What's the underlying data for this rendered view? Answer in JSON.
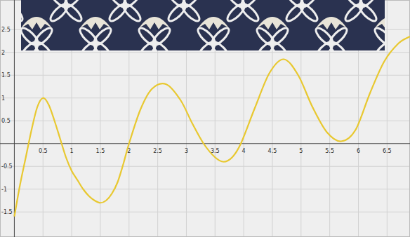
{
  "chart_data": {
    "type": "line",
    "x": [
      0,
      0.1,
      0.2,
      0.3,
      0.4,
      0.5,
      0.6,
      0.7,
      0.8,
      0.9,
      1.0,
      1.1,
      1.2,
      1.3,
      1.4,
      1.5,
      1.6,
      1.7,
      1.8,
      1.9,
      2.0,
      2.2,
      2.4,
      2.65,
      2.9,
      3.1,
      3.3,
      3.5,
      3.65,
      3.8,
      3.95,
      4.2,
      4.45,
      4.7,
      4.95,
      5.2,
      5.45,
      5.7,
      5.95,
      6.2,
      6.45,
      6.7,
      6.9
    ],
    "values": [
      -1.6,
      -0.9,
      -0.3,
      0.3,
      0.8,
      1.0,
      0.85,
      0.5,
      0.1,
      -0.3,
      -0.6,
      -0.8,
      -1.0,
      -1.15,
      -1.25,
      -1.3,
      -1.25,
      -1.1,
      -0.85,
      -0.45,
      0.0,
      0.75,
      1.2,
      1.3,
      0.95,
      0.45,
      0.0,
      -0.3,
      -0.4,
      -0.3,
      0.0,
      0.8,
      1.55,
      1.85,
      1.5,
      0.8,
      0.25,
      0.05,
      0.3,
      1.1,
      1.8,
      2.2,
      2.35
    ],
    "color": "#e8c830",
    "xlim": [
      -0.25,
      6.9
    ],
    "xticks": [
      0.5,
      1,
      1.5,
      2,
      2.5,
      3,
      3.5,
      4,
      4.5,
      5,
      5.5,
      6,
      6.5
    ],
    "ylim": [
      -2.05,
      3.15
    ],
    "yticks": [
      -1.5,
      -1,
      -0.5,
      0.5,
      1,
      1.5,
      2,
      2.5
    ],
    "grid": true
  }
}
